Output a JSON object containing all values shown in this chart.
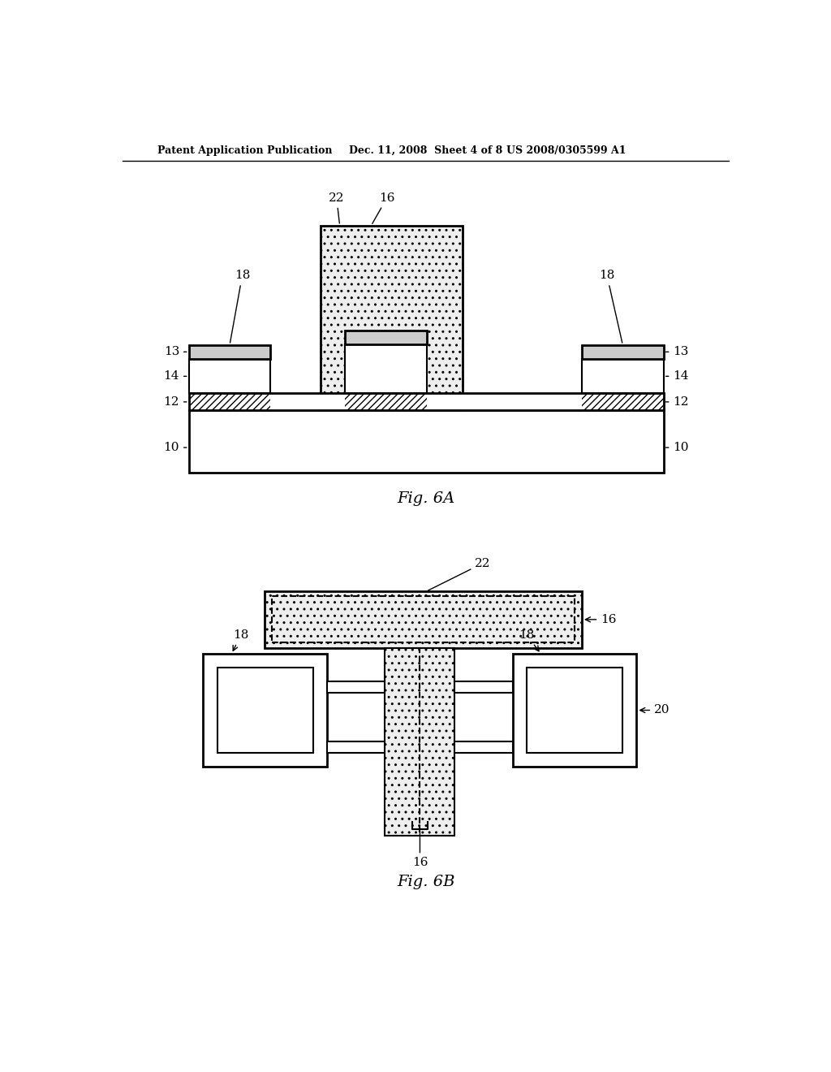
{
  "bg_color": "#ffffff",
  "line_color": "#000000",
  "header_text_left": "Patent Application Publication",
  "header_text_mid": "Dec. 11, 2008  Sheet 4 of 8",
  "header_text_right": "US 2008/0305599 A1",
  "fig6a_label": "Fig. 6A",
  "fig6b_label": "Fig. 6B"
}
